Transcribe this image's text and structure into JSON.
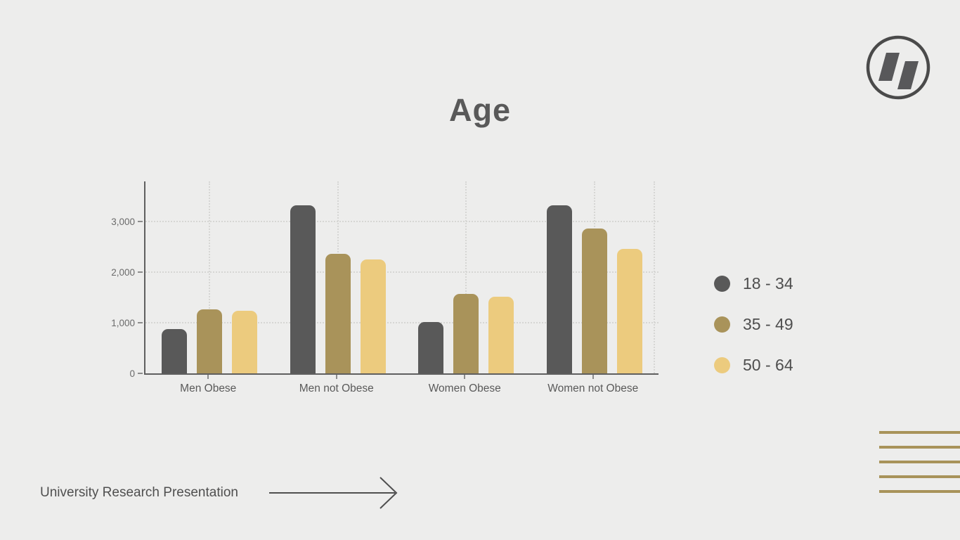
{
  "slide": {
    "title": "Age",
    "footer": "University Research Presentation"
  },
  "colors": {
    "background": "#ededec",
    "title_text": "#595959",
    "axis_text": "#6b6b6b",
    "footer_text": "#4f4f4f",
    "arrow": "#4f4f4f",
    "logo_stroke": "#4a4a4a",
    "logo_fill": "#58585a",
    "decor_gold": "#a8935a"
  },
  "icons": {
    "logo": "double-slash-circle-logo-icon",
    "arrow": "right-arrow-icon"
  },
  "chart_data": {
    "type": "bar",
    "title": "Age",
    "categories": [
      "Men Obese",
      "Men not Obese",
      "Women Obese",
      "Women not Obese"
    ],
    "series": [
      {
        "name": "18 - 34",
        "color": "#595959",
        "values": [
          880,
          3330,
          1020,
          3330
        ]
      },
      {
        "name": "35 - 49",
        "color": "#a9935a",
        "values": [
          1270,
          2370,
          1580,
          2870
        ]
      },
      {
        "name": "50 - 64",
        "color": "#eccb7e",
        "values": [
          1240,
          2250,
          1520,
          2470
        ]
      }
    ],
    "yticks": [
      {
        "value": 0,
        "label": "0"
      },
      {
        "value": 1000,
        "label": "1,000"
      },
      {
        "value": 2000,
        "label": "2,000"
      },
      {
        "value": 3000,
        "label": "3,000"
      }
    ],
    "ylim": [
      0,
      3800
    ],
    "xlabel": "",
    "ylabel": "",
    "grid": "dotted",
    "legend_position": "right"
  }
}
